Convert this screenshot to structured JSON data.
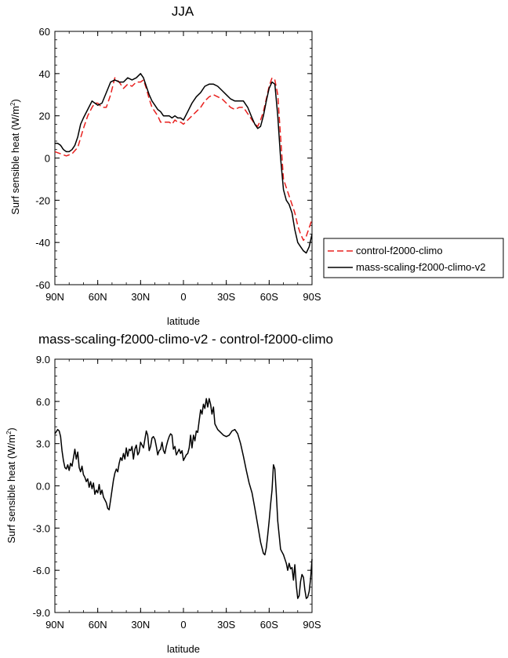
{
  "chart_data": [
    {
      "type": "line",
      "title": "JJA",
      "xlabel": "latitude",
      "ylabel": "Surf sensible heat (W/m²)",
      "ylabel_main": "Surf sensible heat (W/m",
      "ylabel_sup": "2",
      "ylabel_end": ")",
      "xlim": [
        90,
        -90
      ],
      "ylim": [
        -60,
        60
      ],
      "yticks": [
        -60,
        -40,
        -20,
        0,
        20,
        40,
        60
      ],
      "xticks": [
        90,
        60,
        30,
        0,
        -30,
        -60,
        -90
      ],
      "xtick_labels": [
        "90N",
        "60N",
        "30N",
        "0",
        "30S",
        "60S",
        "90S"
      ],
      "ytick_labels": [
        "-60",
        "-40",
        "-20",
        "0",
        "20",
        "40",
        "60"
      ],
      "grid": false,
      "legend": "outside-right",
      "series": [
        {
          "name": "control-f2000-climo",
          "color": "#e8201e",
          "dash": "dashed",
          "x": [
            90,
            86,
            82,
            78,
            74,
            70,
            67,
            64,
            62,
            60,
            57,
            54,
            51,
            48,
            45,
            42,
            39,
            36,
            33,
            30,
            28,
            26,
            24,
            22,
            20,
            18,
            16,
            14,
            12,
            10,
            8,
            6,
            4,
            2,
            0,
            -3,
            -6,
            -9,
            -12,
            -15,
            -18,
            -21,
            -24,
            -27,
            -30,
            -33,
            -36,
            -39,
            -42,
            -45,
            -48,
            -50,
            -52,
            -54,
            -56,
            -58,
            -60,
            -62,
            -64,
            -66,
            -68,
            -70,
            -72,
            -74,
            -76,
            -78,
            -80,
            -82,
            -84,
            -86,
            -88,
            -90
          ],
          "y": [
            3,
            2,
            1,
            2,
            5,
            14,
            20,
            24,
            26,
            26,
            24,
            24,
            30,
            38,
            36,
            33,
            35,
            34,
            36,
            36,
            37,
            33,
            28,
            24,
            22,
            20,
            17,
            17,
            17,
            17,
            16,
            18,
            17,
            17,
            16,
            18,
            20,
            22,
            24,
            27,
            29,
            30,
            29,
            28,
            26,
            24,
            23,
            24,
            24,
            21,
            18,
            16,
            15,
            18,
            22,
            28,
            34,
            38,
            37,
            30,
            10,
            -10,
            -14,
            -18,
            -22,
            -26,
            -32,
            -36,
            -39,
            -37,
            -33,
            -29
          ]
        },
        {
          "name": "mass-scaling-f2000-climo-v2",
          "color": "#000000",
          "dash": "solid",
          "x": [
            90,
            88,
            86,
            84,
            82,
            80,
            78,
            76,
            74,
            72,
            70,
            67,
            64,
            62,
            60,
            57,
            54,
            51,
            48,
            45,
            42,
            39,
            36,
            33,
            30,
            28,
            26,
            24,
            22,
            20,
            18,
            16,
            14,
            12,
            10,
            8,
            6,
            4,
            2,
            0,
            -3,
            -6,
            -9,
            -12,
            -15,
            -18,
            -21,
            -24,
            -27,
            -30,
            -33,
            -36,
            -39,
            -42,
            -45,
            -48,
            -50,
            -52,
            -54,
            -56,
            -58,
            -60,
            -62,
            -64,
            -66,
            -68,
            -70,
            -72,
            -74,
            -76,
            -78,
            -80,
            -82,
            -84,
            -86,
            -88,
            -90
          ],
          "y": [
            7,
            7,
            6,
            4,
            3,
            3,
            4,
            6,
            10,
            16,
            19,
            23,
            27,
            26,
            25,
            26,
            31,
            36,
            37,
            36,
            36,
            38,
            37,
            38,
            40,
            38,
            34,
            30,
            27,
            25,
            23,
            22,
            20,
            20,
            20,
            19,
            20,
            19,
            19,
            18,
            22,
            26,
            29,
            31,
            34,
            35,
            35,
            34,
            32,
            30,
            28,
            27,
            27,
            27,
            24,
            19,
            16,
            14,
            15,
            20,
            27,
            33,
            36,
            35,
            20,
            0,
            -15,
            -20,
            -22,
            -26,
            -34,
            -40,
            -42,
            -44,
            -45,
            -42,
            -36
          ]
        }
      ]
    },
    {
      "type": "line",
      "title": "mass-scaling-f2000-climo-v2 - control-f2000-climo",
      "xlabel": "latitude",
      "ylabel": "Surf sensible heat (W/m²)",
      "ylabel_main": "Surf sensible heat (W/m",
      "ylabel_sup": "2",
      "ylabel_end": ")",
      "xlim": [
        90,
        -90
      ],
      "ylim": [
        -9,
        9
      ],
      "yticks": [
        -9,
        -6,
        -3,
        0,
        3,
        6,
        9
      ],
      "ytick_labels": [
        "-9.0",
        "-6.0",
        "-3.0",
        "0.0",
        "3.0",
        "6.0",
        "9.0"
      ],
      "xticks": [
        90,
        60,
        30,
        0,
        -30,
        -60,
        -90
      ],
      "xtick_labels": [
        "90N",
        "60N",
        "30N",
        "0",
        "30S",
        "60S",
        "90S"
      ],
      "grid": false,
      "series": [
        {
          "name": "",
          "color": "#000000",
          "dash": "solid",
          "x": [
            90,
            88,
            87,
            86,
            85,
            84,
            83,
            82,
            81,
            80,
            79,
            78,
            77,
            76,
            75,
            74,
            73,
            72,
            71,
            70,
            69,
            68,
            67,
            66,
            65,
            64,
            63,
            62,
            61,
            60,
            59,
            58,
            57,
            56,
            55,
            54,
            53,
            52,
            51,
            50,
            49,
            48,
            47,
            46,
            45,
            44,
            43,
            42,
            41,
            40,
            39,
            38,
            37,
            36,
            35,
            34,
            33,
            32,
            31,
            30,
            29,
            28,
            27,
            26,
            25,
            24,
            23,
            22,
            21,
            20,
            19,
            18,
            17,
            16,
            15,
            14,
            13,
            12,
            11,
            10,
            9,
            8,
            7,
            6,
            5,
            4,
            3,
            2,
            1,
            0,
            -1,
            -2,
            -3,
            -4,
            -5,
            -6,
            -7,
            -8,
            -9,
            -10,
            -11,
            -12,
            -13,
            -14,
            -15,
            -16,
            -17,
            -18,
            -19,
            -20,
            -21,
            -22,
            -24,
            -26,
            -28,
            -30,
            -32,
            -34,
            -36,
            -38,
            -40,
            -42,
            -44,
            -46,
            -48,
            -50,
            -52,
            -54,
            -56,
            -57,
            -58,
            -59,
            -60,
            -61,
            -62,
            -63,
            -64,
            -65,
            -66,
            -67,
            -68,
            -69,
            -70,
            -71,
            -72,
            -73,
            -74,
            -75,
            -76,
            -77,
            -78,
            -79,
            -80,
            -81,
            -82,
            -83,
            -84,
            -85,
            -86,
            -87,
            -88,
            -89,
            -90
          ],
          "y": [
            3.7,
            4.0,
            3.9,
            3.5,
            2.5,
            1.8,
            1.3,
            1.2,
            1.5,
            1.1,
            1.6,
            1.4,
            2.0,
            2.6,
            1.9,
            2.4,
            1.3,
            1.0,
            1.4,
            0.8,
            0.6,
            0.3,
            0.5,
            -0.1,
            0.3,
            -0.2,
            0.2,
            -0.6,
            -0.3,
            -0.5,
            0.1,
            -0.6,
            -0.3,
            -0.8,
            -1.0,
            -1.2,
            -1.6,
            -1.7,
            -1.0,
            -0.3,
            0.4,
            0.9,
            1.2,
            1.0,
            1.6,
            2.0,
            1.8,
            2.3,
            1.9,
            2.7,
            2.1,
            2.6,
            2.5,
            2.8,
            1.9,
            2.6,
            2.9,
            2.2,
            2.4,
            3.1,
            2.9,
            2.7,
            3.3,
            3.9,
            3.6,
            2.5,
            2.8,
            3.4,
            3.5,
            3.3,
            2.8,
            2.2,
            2.5,
            2.6,
            3.1,
            2.5,
            2.3,
            2.8,
            3.2,
            3.5,
            3.7,
            3.6,
            2.6,
            2.8,
            2.2,
            2.4,
            2.6,
            2.3,
            2.5,
            1.8,
            2.0,
            2.2,
            2.3,
            2.7,
            3.6,
            2.7,
            3.6,
            3.2,
            3.9,
            3.8,
            4.6,
            5.4,
            5.1,
            5.8,
            5.5,
            6.2,
            5.6,
            6.2,
            5.8,
            5.1,
            5.6,
            4.4,
            4.0,
            3.8,
            3.6,
            3.5,
            3.6,
            3.9,
            4.0,
            3.7,
            3.0,
            2.1,
            1.1,
            0.2,
            -0.5,
            -1.6,
            -2.8,
            -4.0,
            -4.8,
            -4.9,
            -4.4,
            -3.5,
            -2.5,
            -1.3,
            -0.3,
            1.5,
            1.2,
            -0.5,
            -2.5,
            -3.5,
            -4.5,
            -4.7,
            -4.9,
            -5.2,
            -5.5,
            -6.0,
            -5.5,
            -5.9,
            -5.8,
            -6.7,
            -5.6,
            -7.1,
            -8.0,
            -7.8,
            -6.8,
            -6.3,
            -6.5,
            -7.4,
            -8.0,
            -7.9,
            -7.5,
            -6.6,
            -5.2
          ]
        }
      ]
    }
  ]
}
